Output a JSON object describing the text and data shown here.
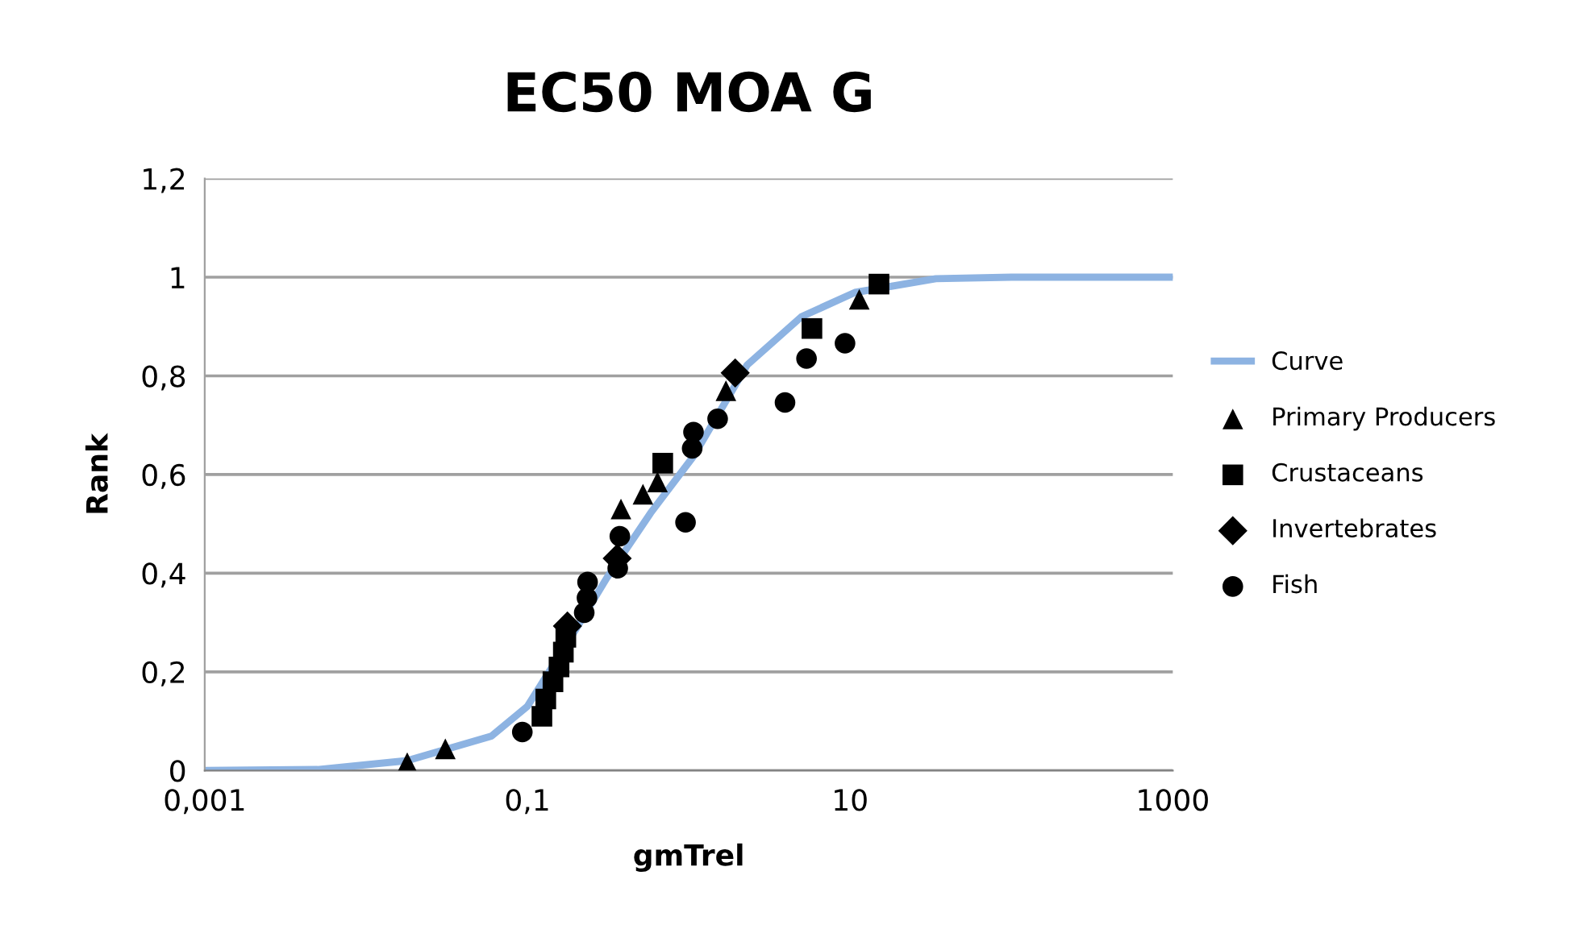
{
  "chart_data": {
    "type": "scatter",
    "title": "EC50 MOA G",
    "xlabel": "gmTrel",
    "ylabel": "Rank",
    "log": "x",
    "xlim": [
      0.001,
      1000
    ],
    "xticks": [
      {
        "value": 0.001,
        "label": "0,001"
      },
      {
        "value": 0.1,
        "label": "0,1"
      },
      10,
      1000
    ],
    "ylim": [
      0,
      1.2
    ],
    "yticks": [
      0,
      {
        "value": 0.2,
        "label": "0,2"
      },
      {
        "value": 0.4,
        "label": "0,4"
      },
      {
        "value": 0.6,
        "label": "0,6"
      },
      {
        "value": 0.8,
        "label": "0,8"
      },
      1,
      {
        "value": 1.2,
        "label": "1,2"
      }
    ],
    "grid": "y",
    "legend": "right",
    "series": [
      {
        "name": "Curve",
        "type": "line",
        "marker": "none",
        "line_style": "solid",
        "color": "#8db3e2",
        "x": [
          0.001,
          0.005,
          0.018,
          0.06,
          0.1,
          0.2,
          0.31,
          0.58,
          1.07,
          2.3,
          5,
          10.7,
          34,
          100,
          1000
        ],
        "values": [
          0,
          0.002,
          0.02,
          0.07,
          0.13,
          0.287,
          0.39,
          0.522,
          0.637,
          0.822,
          0.92,
          0.969,
          0.997,
          1,
          1
        ]
      },
      {
        "name": "Primary Producers",
        "marker": "triangle",
        "color": "#000000",
        "x": [
          0.018,
          0.031,
          0.38,
          0.52,
          0.64,
          1.7,
          11.4
        ],
        "values": [
          0.016,
          0.044,
          0.53,
          0.56,
          0.585,
          0.77,
          0.955
        ]
      },
      {
        "name": "Crustaceans",
        "marker": "square",
        "color": "#000000",
        "x": [
          0.123,
          0.13,
          0.144,
          0.157,
          0.167,
          0.173,
          0.69,
          5.8,
          15.1
        ],
        "values": [
          0.11,
          0.145,
          0.18,
          0.21,
          0.24,
          0.27,
          0.623,
          0.896,
          0.986
        ]
      },
      {
        "name": "Invertebrates",
        "marker": "diamond",
        "color": "#000000",
        "x": [
          0.177,
          0.36,
          1.94
        ],
        "values": [
          0.293,
          0.43,
          0.806
        ]
      },
      {
        "name": "Fish",
        "marker": "circle",
        "color": "#000000",
        "x": [
          0.093,
          0.225,
          0.234,
          0.236,
          0.363,
          0.374,
          0.955,
          1.05,
          1.07,
          1.51,
          3.95,
          5.37,
          9.3
        ],
        "values": [
          0.078,
          0.32,
          0.35,
          0.382,
          0.41,
          0.475,
          0.503,
          0.653,
          0.686,
          0.713,
          0.746,
          0.835,
          0.866
        ]
      }
    ]
  }
}
